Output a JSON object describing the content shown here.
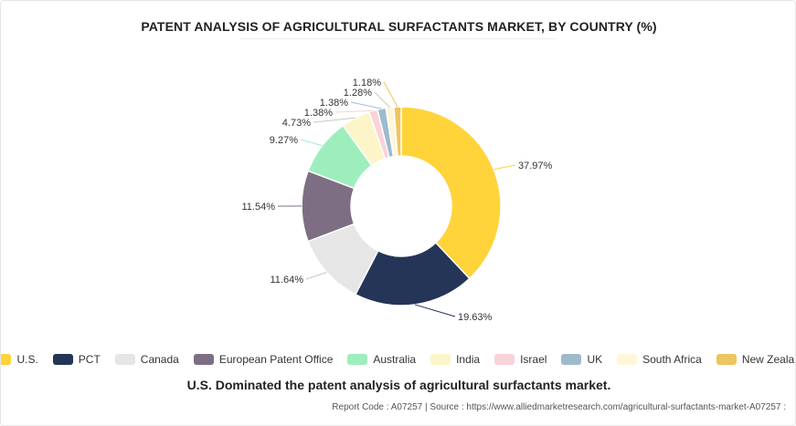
{
  "title": "PATENT ANALYSIS OF AGRICULTURAL SURFACTANTS MARKET, BY COUNTRY (%)",
  "subtitle": "U.S. Dominated the patent analysis of agricultural surfactants market.",
  "source": "Report Code : A07257  |  Source : https://www.alliedmarketresearch.com/agricultural-surfactants-market-A07257 :",
  "chart_data": {
    "type": "pie",
    "donut": true,
    "legend_position": "bottom",
    "start_angle_deg": 0,
    "direction": "clockwise",
    "categories": [
      "U.S.",
      "PCT",
      "Canada",
      "European Patent Office",
      "Australia",
      "India",
      "Israel",
      "UK",
      "South Africa",
      "New Zealand"
    ],
    "values": [
      37.97,
      19.63,
      11.64,
      11.54,
      9.27,
      4.73,
      1.38,
      1.38,
      1.28,
      1.18
    ],
    "data_labels": [
      "37.97%",
      "19.63%",
      "11.64%",
      "11.54%",
      "9.27%",
      "4.73%",
      "1.38%",
      "1.38%",
      "1.28%",
      "1.18%"
    ],
    "colors": [
      "#ffd33a",
      "#253558",
      "#e6e6e6",
      "#7e6e83",
      "#9eeebd",
      "#fcf5c8",
      "#f8d3d7",
      "#9fbacd",
      "#fff6d9",
      "#eec55e"
    ]
  }
}
